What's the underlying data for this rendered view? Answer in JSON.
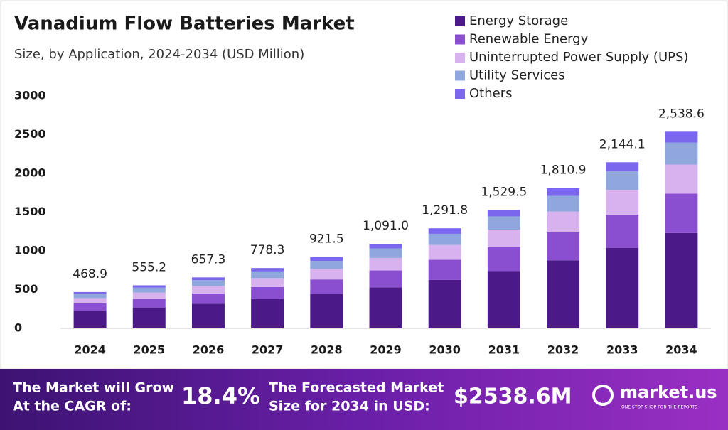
{
  "chart_data": {
    "type": "stacked-bar",
    "title": "Vanadium Flow Batteries Market",
    "subtitle": "Size, by Application, 2024-2034 (USD Million)",
    "categories": [
      "2024",
      "2025",
      "2026",
      "2027",
      "2028",
      "2029",
      "2030",
      "2031",
      "2032",
      "2033",
      "2034"
    ],
    "series": [
      {
        "name": "Energy Storage",
        "color": "#4b1a88",
        "values": [
          227.4,
          269.3,
          318.8,
          377.5,
          446.9,
          529.1,
          626.5,
          741.8,
          878.3,
          1039.9,
          1231.2
        ]
      },
      {
        "name": "Renewable Energy",
        "color": "#8a4fd0",
        "values": [
          93.8,
          111.0,
          131.5,
          155.7,
          184.3,
          218.2,
          258.4,
          305.9,
          362.2,
          428.8,
          507.7
        ]
      },
      {
        "name": "Uninterrupted Power Supply (UPS)",
        "color": "#d7b2ef",
        "values": [
          69.4,
          82.2,
          97.3,
          115.2,
          136.4,
          161.5,
          191.2,
          226.4,
          268.0,
          317.3,
          375.7
        ]
      },
      {
        "name": "Utility Services",
        "color": "#8fa7dc",
        "values": [
          52.5,
          62.2,
          73.6,
          87.2,
          103.2,
          122.2,
          144.7,
          171.3,
          202.8,
          240.1,
          284.3
        ]
      },
      {
        "name": "Others",
        "color": "#7a67ee",
        "values": [
          25.8,
          30.5,
          36.1,
          42.7,
          50.7,
          60.0,
          71.0,
          84.1,
          99.6,
          118.0,
          139.7
        ]
      }
    ],
    "totals": {
      "values": [
        468.9,
        555.2,
        657.3,
        778.3,
        921.5,
        1091.0,
        1291.8,
        1529.5,
        1810.9,
        2144.1,
        2538.6
      ],
      "value_labels": [
        "468.9",
        "555.2",
        "657.3",
        "778.3",
        "921.5",
        "1,091.0",
        "1,291.8",
        "1,529.5",
        "1,810.9",
        "2,144.1",
        "2,538.6"
      ]
    },
    "ylim": [
      0,
      3000
    ],
    "yticks": [
      0,
      500,
      1000,
      1500,
      2000,
      2500,
      3000
    ],
    "legend": "top-right"
  },
  "footer": {
    "cagr_text_1": "The Market will Grow",
    "cagr_text_2": "At the CAGR of:",
    "cagr_value": "18.4%",
    "forecast_text_1": "The Forecasted Market",
    "forecast_text_2": "Size for 2034 in USD:",
    "forecast_value": "$2538.6M",
    "brand": "market.us",
    "tagline": "ONE STOP SHOP FOR THE REPORTS"
  }
}
